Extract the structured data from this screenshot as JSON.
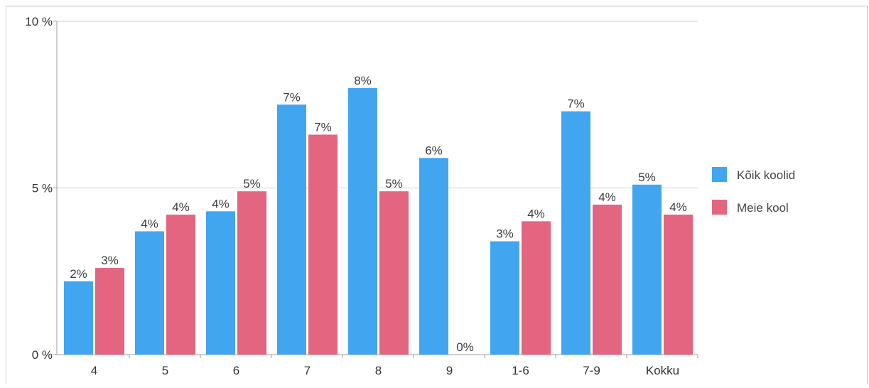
{
  "chart_data": {
    "type": "bar",
    "title": "",
    "xlabel": "",
    "ylabel": "",
    "categories": [
      "4",
      "5",
      "6",
      "7",
      "8",
      "9",
      "1-6",
      "7-9",
      "Kokku"
    ],
    "series": [
      {
        "name": "Kõik koolid",
        "color": "#42a5f0",
        "values": [
          2.2,
          3.7,
          4.3,
          7.5,
          8.0,
          5.9,
          3.4,
          7.3,
          5.1
        ],
        "labels": [
          "2%",
          "4%",
          "4%",
          "7%",
          "8%",
          "6%",
          "3%",
          "7%",
          "5%"
        ]
      },
      {
        "name": "Meie kool",
        "color": "#e3657f",
        "values": [
          2.6,
          4.2,
          4.9,
          6.6,
          4.9,
          0,
          4.0,
          4.5,
          4.2
        ],
        "labels": [
          "3%",
          "4%",
          "5%",
          "7%",
          "5%",
          "0%",
          "4%",
          "4%",
          "4%"
        ]
      }
    ],
    "ylim": [
      0,
      10
    ],
    "yticks": [
      {
        "value": 0,
        "label": "0 %"
      },
      {
        "value": 5,
        "label": "5 %"
      },
      {
        "value": 10,
        "label": "10 %"
      }
    ],
    "grid": true,
    "legend_position": "right"
  }
}
